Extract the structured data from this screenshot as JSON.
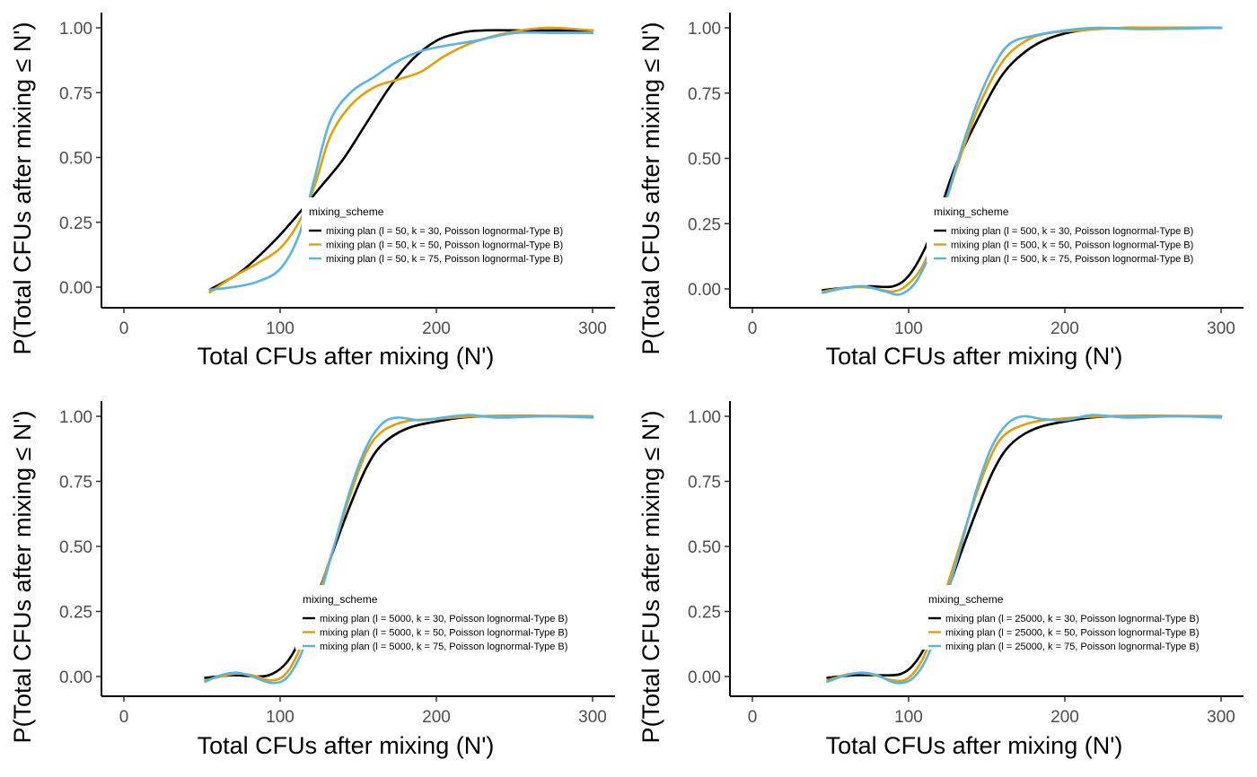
{
  "colors": {
    "background": "#ffffff",
    "axis": "#000000",
    "tick_label": "#4d4d4d",
    "series": [
      "#000000",
      "#E69F00",
      "#56B4E9"
    ]
  },
  "chart_data": [
    {
      "type": "line",
      "xlabel": "Total CFUs after mixing (N')",
      "ylabel": "P(Total CFUs after mixing ≤ N')",
      "xlim": [
        -15,
        315
      ],
      "ylim": [
        -0.08,
        1.06
      ],
      "x_ticks": [
        "0",
        "100",
        "200",
        "300"
      ],
      "y_ticks": [
        "0.00",
        "0.25",
        "0.50",
        "0.75",
        "1.00"
      ],
      "grid": false,
      "legend_title": "mixing_scheme",
      "legend_position": "center-right",
      "series": [
        {
          "name": "mixing plan (l = 50, k = 30, Poisson lognormal-Type B)",
          "color": "#000000",
          "points": [
            [
              55,
              -0.01
            ],
            [
              75,
              0.06
            ],
            [
              95,
              0.17
            ],
            [
              110,
              0.27
            ],
            [
              125,
              0.38
            ],
            [
              140,
              0.49
            ],
            [
              155,
              0.63
            ],
            [
              170,
              0.77
            ],
            [
              185,
              0.88
            ],
            [
              200,
              0.95
            ],
            [
              215,
              0.98
            ],
            [
              230,
              0.99
            ],
            [
              260,
              0.99
            ],
            [
              300,
              0.99
            ]
          ]
        },
        {
          "name": "mixing plan (l = 50, k = 50, Poisson lognormal-Type B)",
          "color": "#E69F00",
          "points": [
            [
              55,
              -0.02
            ],
            [
              70,
              0.04
            ],
            [
              85,
              0.09
            ],
            [
              100,
              0.15
            ],
            [
              112,
              0.25
            ],
            [
              122,
              0.39
            ],
            [
              132,
              0.58
            ],
            [
              145,
              0.7
            ],
            [
              160,
              0.77
            ],
            [
              175,
              0.8
            ],
            [
              190,
              0.83
            ],
            [
              205,
              0.89
            ],
            [
              222,
              0.94
            ],
            [
              245,
              0.98
            ],
            [
              270,
              1.0
            ],
            [
              300,
              0.99
            ]
          ]
        },
        {
          "name": "mixing plan (l = 50, k = 75, Poisson lognormal-Type B)",
          "color": "#56B4E9",
          "points": [
            [
              55,
              -0.01
            ],
            [
              70,
              0.0
            ],
            [
              85,
              0.02
            ],
            [
              100,
              0.07
            ],
            [
              112,
              0.2
            ],
            [
              122,
              0.42
            ],
            [
              132,
              0.64
            ],
            [
              145,
              0.75
            ],
            [
              160,
              0.81
            ],
            [
              175,
              0.87
            ],
            [
              190,
              0.91
            ],
            [
              205,
              0.93
            ],
            [
              225,
              0.95
            ],
            [
              250,
              0.98
            ],
            [
              275,
              0.98
            ],
            [
              300,
              0.98
            ]
          ]
        }
      ]
    },
    {
      "type": "line",
      "xlabel": "Total CFUs after mixing (N')",
      "ylabel": "P(Total CFUs after mixing ≤ N')",
      "xlim": [
        -15,
        315
      ],
      "ylim": [
        -0.08,
        1.06
      ],
      "x_ticks": [
        "0",
        "100",
        "200",
        "300"
      ],
      "y_ticks": [
        "0.00",
        "0.25",
        "0.50",
        "0.75",
        "1.00"
      ],
      "grid": false,
      "legend_title": "mixing_scheme",
      "legend_position": "center-right",
      "series": [
        {
          "name": "mixing plan (l = 500, k = 30, Poisson lognormal-Type B)",
          "color": "#000000",
          "points": [
            [
              45,
              -0.005
            ],
            [
              60,
              0.005
            ],
            [
              75,
              0.01
            ],
            [
              90,
              0.01
            ],
            [
              100,
              0.05
            ],
            [
              110,
              0.15
            ],
            [
              120,
              0.3
            ],
            [
              130,
              0.47
            ],
            [
              145,
              0.66
            ],
            [
              160,
              0.82
            ],
            [
              175,
              0.91
            ],
            [
              190,
              0.96
            ],
            [
              210,
              0.99
            ],
            [
              240,
              1.0
            ],
            [
              300,
              1.0
            ]
          ]
        },
        {
          "name": "mixing plan (l = 500, k = 50, Poisson lognormal-Type B)",
          "color": "#E69F00",
          "points": [
            [
              45,
              -0.01
            ],
            [
              60,
              0.005
            ],
            [
              75,
              0.005
            ],
            [
              90,
              -0.01
            ],
            [
              100,
              0.02
            ],
            [
              110,
              0.1
            ],
            [
              120,
              0.26
            ],
            [
              130,
              0.45
            ],
            [
              145,
              0.7
            ],
            [
              160,
              0.87
            ],
            [
              175,
              0.95
            ],
            [
              190,
              0.98
            ],
            [
              210,
              0.99
            ],
            [
              240,
              1.0
            ],
            [
              300,
              1.0
            ]
          ]
        },
        {
          "name": "mixing plan (l = 500, k = 75, Poisson lognormal-Type B)",
          "color": "#56B4E9",
          "points": [
            [
              45,
              -0.015
            ],
            [
              60,
              0.005
            ],
            [
              72,
              0.01
            ],
            [
              85,
              -0.01
            ],
            [
              95,
              -0.02
            ],
            [
              105,
              0.03
            ],
            [
              115,
              0.16
            ],
            [
              125,
              0.36
            ],
            [
              135,
              0.56
            ],
            [
              145,
              0.73
            ],
            [
              155,
              0.86
            ],
            [
              165,
              0.94
            ],
            [
              180,
              0.97
            ],
            [
              200,
              0.99
            ],
            [
              220,
              1.0
            ],
            [
              250,
              0.995
            ],
            [
              300,
              1.0
            ]
          ]
        }
      ]
    },
    {
      "type": "line",
      "xlabel": "Total CFUs after mixing (N')",
      "ylabel": "P(Total CFUs after mixing ≤ N')",
      "xlim": [
        -15,
        315
      ],
      "ylim": [
        -0.08,
        1.06
      ],
      "x_ticks": [
        "0",
        "100",
        "200",
        "300"
      ],
      "y_ticks": [
        "0.00",
        "0.25",
        "0.50",
        "0.75",
        "1.00"
      ],
      "grid": false,
      "legend_title": "mixing_scheme",
      "legend_position": "center-right",
      "series": [
        {
          "name": "mixing plan (l = 5000, k = 30, Poisson lognormal-Type B)",
          "color": "#000000",
          "points": [
            [
              52,
              -0.005
            ],
            [
              70,
              0.005
            ],
            [
              85,
              0.0
            ],
            [
              95,
              0.01
            ],
            [
              105,
              0.06
            ],
            [
              115,
              0.17
            ],
            [
              125,
              0.33
            ],
            [
              135,
              0.5
            ],
            [
              145,
              0.66
            ],
            [
              155,
              0.8
            ],
            [
              165,
              0.89
            ],
            [
              180,
              0.95
            ],
            [
              200,
              0.98
            ],
            [
              230,
              1.0
            ],
            [
              300,
              1.0
            ]
          ]
        },
        {
          "name": "mixing plan (l = 5000, k = 50, Poisson lognormal-Type B)",
          "color": "#E69F00",
          "points": [
            [
              52,
              -0.015
            ],
            [
              70,
              0.01
            ],
            [
              82,
              0.005
            ],
            [
              95,
              -0.015
            ],
            [
              105,
              0.02
            ],
            [
              115,
              0.14
            ],
            [
              125,
              0.32
            ],
            [
              135,
              0.51
            ],
            [
              145,
              0.7
            ],
            [
              155,
              0.86
            ],
            [
              165,
              0.94
            ],
            [
              180,
              0.98
            ],
            [
              200,
              0.99
            ],
            [
              230,
              1.0
            ],
            [
              300,
              1.0
            ]
          ]
        },
        {
          "name": "mixing plan (l = 5000, k = 75, Poisson lognormal-Type B)",
          "color": "#56B4E9",
          "points": [
            [
              52,
              -0.02
            ],
            [
              62,
              0.005
            ],
            [
              72,
              0.015
            ],
            [
              82,
              0.0
            ],
            [
              95,
              -0.025
            ],
            [
              105,
              0.0
            ],
            [
              115,
              0.11
            ],
            [
              125,
              0.3
            ],
            [
              135,
              0.51
            ],
            [
              145,
              0.72
            ],
            [
              155,
              0.88
            ],
            [
              165,
              0.97
            ],
            [
              175,
              0.995
            ],
            [
              190,
              0.985
            ],
            [
              210,
              1.0
            ],
            [
              222,
              1.005
            ],
            [
              240,
              0.995
            ],
            [
              270,
              1.0
            ],
            [
              300,
              0.995
            ]
          ]
        }
      ]
    },
    {
      "type": "line",
      "xlabel": "Total CFUs after mixing (N')",
      "ylabel": "P(Total CFUs after mixing ≤ N')",
      "xlim": [
        -15,
        315
      ],
      "ylim": [
        -0.08,
        1.06
      ],
      "x_ticks": [
        "0",
        "100",
        "200",
        "300"
      ],
      "y_ticks": [
        "0.00",
        "0.25",
        "0.50",
        "0.75",
        "1.00"
      ],
      "grid": false,
      "legend_title": "mixing_scheme",
      "legend_position": "center-right",
      "series": [
        {
          "name": "mixing plan (l = 25000, k = 30, Poisson lognormal-Type B)",
          "color": "#000000",
          "points": [
            [
              48,
              -0.005
            ],
            [
              65,
              0.005
            ],
            [
              80,
              0.005
            ],
            [
              95,
              0.01
            ],
            [
              105,
              0.06
            ],
            [
              115,
              0.17
            ],
            [
              125,
              0.33
            ],
            [
              135,
              0.5
            ],
            [
              145,
              0.66
            ],
            [
              155,
              0.8
            ],
            [
              165,
              0.89
            ],
            [
              180,
              0.95
            ],
            [
              200,
              0.98
            ],
            [
              230,
              1.0
            ],
            [
              300,
              1.0
            ]
          ]
        },
        {
          "name": "mixing plan (l = 25000, k = 50, Poisson lognormal-Type B)",
          "color": "#E69F00",
          "points": [
            [
              48,
              -0.015
            ],
            [
              62,
              0.01
            ],
            [
              75,
              0.01
            ],
            [
              90,
              -0.015
            ],
            [
              100,
              -0.005
            ],
            [
              110,
              0.08
            ],
            [
              120,
              0.26
            ],
            [
              130,
              0.45
            ],
            [
              140,
              0.64
            ],
            [
              150,
              0.81
            ],
            [
              160,
              0.92
            ],
            [
              175,
              0.97
            ],
            [
              195,
              0.99
            ],
            [
              230,
              1.0
            ],
            [
              300,
              1.0
            ]
          ]
        },
        {
          "name": "mixing plan (l = 25000, k = 75, Poisson lognormal-Type B)",
          "color": "#56B4E9",
          "points": [
            [
              48,
              -0.02
            ],
            [
              60,
              0.005
            ],
            [
              70,
              0.015
            ],
            [
              80,
              0.005
            ],
            [
              92,
              -0.025
            ],
            [
              103,
              -0.005
            ],
            [
              113,
              0.09
            ],
            [
              123,
              0.28
            ],
            [
              133,
              0.49
            ],
            [
              143,
              0.71
            ],
            [
              153,
              0.88
            ],
            [
              163,
              0.97
            ],
            [
              173,
              1.0
            ],
            [
              185,
              0.99
            ],
            [
              200,
              0.985
            ],
            [
              218,
              1.005
            ],
            [
              240,
              0.995
            ],
            [
              270,
              1.0
            ],
            [
              300,
              0.995
            ]
          ]
        }
      ]
    }
  ]
}
